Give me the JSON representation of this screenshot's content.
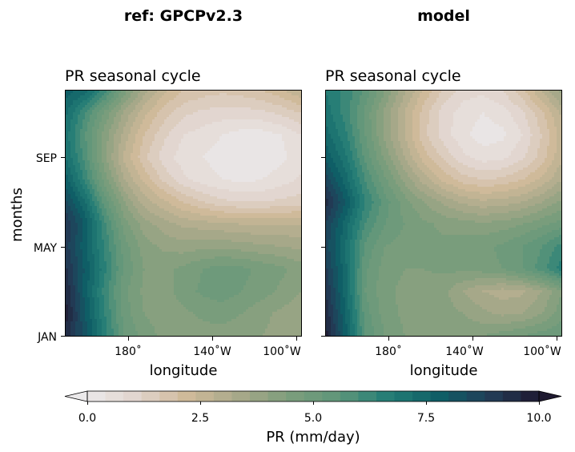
{
  "chart_data": {
    "type": "heatmap",
    "colorbar": {
      "label": "PR (mm/day)",
      "range": [
        0,
        10
      ],
      "levels": 25,
      "extend": "both",
      "ticks": [
        "0.0",
        "2.5",
        "5.0",
        "7.5",
        "10.0"
      ],
      "colormap_stops": [
        "#ebe9ea",
        "#e1d4cd",
        "#cfb999",
        "#a9a98a",
        "#7d9e7c",
        "#5f967a",
        "#237d76",
        "#0f5f66",
        "#223d58",
        "#1f1a31"
      ]
    },
    "panels": [
      {
        "column_title": "ref: GPCPv2.3",
        "title": "PR seasonal cycle",
        "xlabel": "longitude",
        "ylabel": "months",
        "x_ticks": [
          "180$^\\circ$",
          "140$^\\circ$W",
          "100$^\\circ$W"
        ],
        "x_tick_labels": [
          "180˚",
          "140˚W",
          "100˚W"
        ],
        "y_tick_labels": [
          "JAN",
          "MAY",
          "SEP"
        ],
        "xlim_deg_east": [
          160,
          272
        ],
        "ylim_month": [
          1,
          12
        ],
        "grid": [
          [
            9.5,
            8.2,
            6.6,
            5.2,
            4.6,
            4.3,
            4.2,
            4.2,
            4.2,
            4.1,
            4.0,
            3.9,
            3.8
          ],
          [
            9.8,
            8.0,
            6.4,
            5.0,
            4.4,
            4.2,
            4.3,
            4.5,
            4.6,
            4.4,
            4.1,
            3.9,
            3.7
          ],
          [
            9.6,
            7.8,
            6.2,
            4.9,
            4.3,
            4.2,
            4.6,
            4.9,
            5.0,
            4.8,
            4.6,
            4.3,
            4.0
          ],
          [
            9.3,
            7.9,
            6.5,
            5.1,
            4.4,
            4.3,
            4.5,
            4.8,
            5.0,
            4.9,
            4.7,
            4.5,
            4.2
          ],
          [
            9.0,
            7.7,
            6.3,
            5.0,
            4.2,
            3.9,
            3.8,
            3.9,
            3.9,
            3.8,
            3.7,
            3.6,
            3.5
          ],
          [
            9.2,
            7.9,
            6.1,
            4.6,
            3.8,
            3.4,
            3.1,
            3.0,
            2.9,
            2.8,
            2.8,
            2.8,
            2.8
          ],
          [
            8.5,
            7.2,
            5.4,
            4.0,
            3.0,
            2.5,
            2.0,
            1.6,
            1.3,
            1.2,
            1.2,
            1.3,
            1.4
          ],
          [
            7.8,
            6.3,
            4.6,
            3.2,
            2.3,
            1.5,
            0.9,
            0.6,
            0.4,
            0.3,
            0.4,
            0.6,
            0.9
          ],
          [
            7.2,
            5.8,
            4.1,
            2.7,
            1.7,
            1.0,
            0.6,
            0.4,
            0.2,
            0.1,
            0.1,
            0.3,
            0.6
          ],
          [
            7.0,
            5.6,
            4.2,
            3.0,
            2.0,
            1.3,
            0.8,
            0.6,
            0.4,
            0.2,
            0.2,
            0.4,
            0.8
          ],
          [
            7.3,
            6.0,
            4.7,
            3.5,
            2.5,
            1.8,
            1.3,
            1.1,
            1.0,
            1.0,
            1.1,
            1.3,
            1.6
          ],
          [
            7.8,
            7.4,
            6.2,
            4.6,
            3.4,
            2.5,
            2.0,
            1.8,
            1.7,
            1.8,
            2.0,
            2.3,
            2.8
          ]
        ]
      },
      {
        "column_title": "model",
        "title": "PR seasonal cycle",
        "xlabel": "longitude",
        "x_tick_labels": [
          "180˚",
          "140˚W",
          "100˚W"
        ],
        "xlim_deg_east": [
          160,
          272
        ],
        "ylim_month": [
          1,
          12
        ],
        "grid": [
          [
            9.8,
            7.8,
            5.6,
            4.8,
            4.4,
            4.3,
            4.3,
            4.3,
            4.4,
            4.6,
            4.8,
            5.0,
            5.2
          ],
          [
            9.5,
            7.6,
            5.4,
            4.6,
            4.3,
            4.2,
            4.2,
            4.0,
            3.7,
            3.5,
            3.6,
            4.0,
            4.6
          ],
          [
            9.2,
            7.4,
            5.2,
            4.5,
            4.3,
            4.2,
            4.1,
            3.6,
            3.2,
            3.0,
            3.1,
            3.6,
            4.4
          ],
          [
            8.9,
            7.3,
            5.3,
            4.6,
            4.4,
            4.4,
            4.5,
            4.5,
            4.6,
            4.8,
            5.2,
            5.8,
            6.6
          ],
          [
            8.6,
            7.2,
            5.5,
            4.8,
            4.6,
            4.5,
            4.5,
            4.6,
            4.7,
            4.9,
            5.2,
            5.6,
            6.2
          ],
          [
            8.8,
            7.4,
            6.0,
            5.2,
            4.8,
            4.5,
            4.3,
            4.2,
            4.1,
            4.2,
            4.4,
            4.7,
            5.0
          ],
          [
            9.4,
            8.0,
            6.4,
            5.4,
            4.6,
            4.0,
            3.5,
            3.1,
            2.9,
            3.0,
            3.2,
            3.6,
            4.1
          ],
          [
            8.6,
            7.4,
            6.0,
            4.9,
            3.9,
            3.0,
            2.3,
            1.8,
            1.6,
            1.7,
            2.0,
            2.5,
            3.2
          ],
          [
            7.9,
            6.9,
            5.5,
            4.3,
            3.2,
            2.2,
            1.5,
            0.9,
            0.6,
            0.7,
            1.1,
            1.8,
            2.7
          ],
          [
            7.4,
            6.5,
            5.2,
            3.9,
            2.8,
            1.7,
            1.0,
            0.5,
            0.2,
            0.3,
            0.8,
            1.6,
            2.6
          ],
          [
            7.0,
            6.2,
            5.1,
            3.9,
            2.8,
            1.8,
            1.0,
            0.6,
            0.4,
            0.6,
            1.1,
            1.9,
            2.9
          ],
          [
            6.8,
            6.3,
            5.5,
            4.4,
            3.3,
            2.3,
            1.5,
            1.0,
            0.9,
            1.2,
            1.9,
            2.8,
            3.8
          ]
        ]
      }
    ]
  }
}
